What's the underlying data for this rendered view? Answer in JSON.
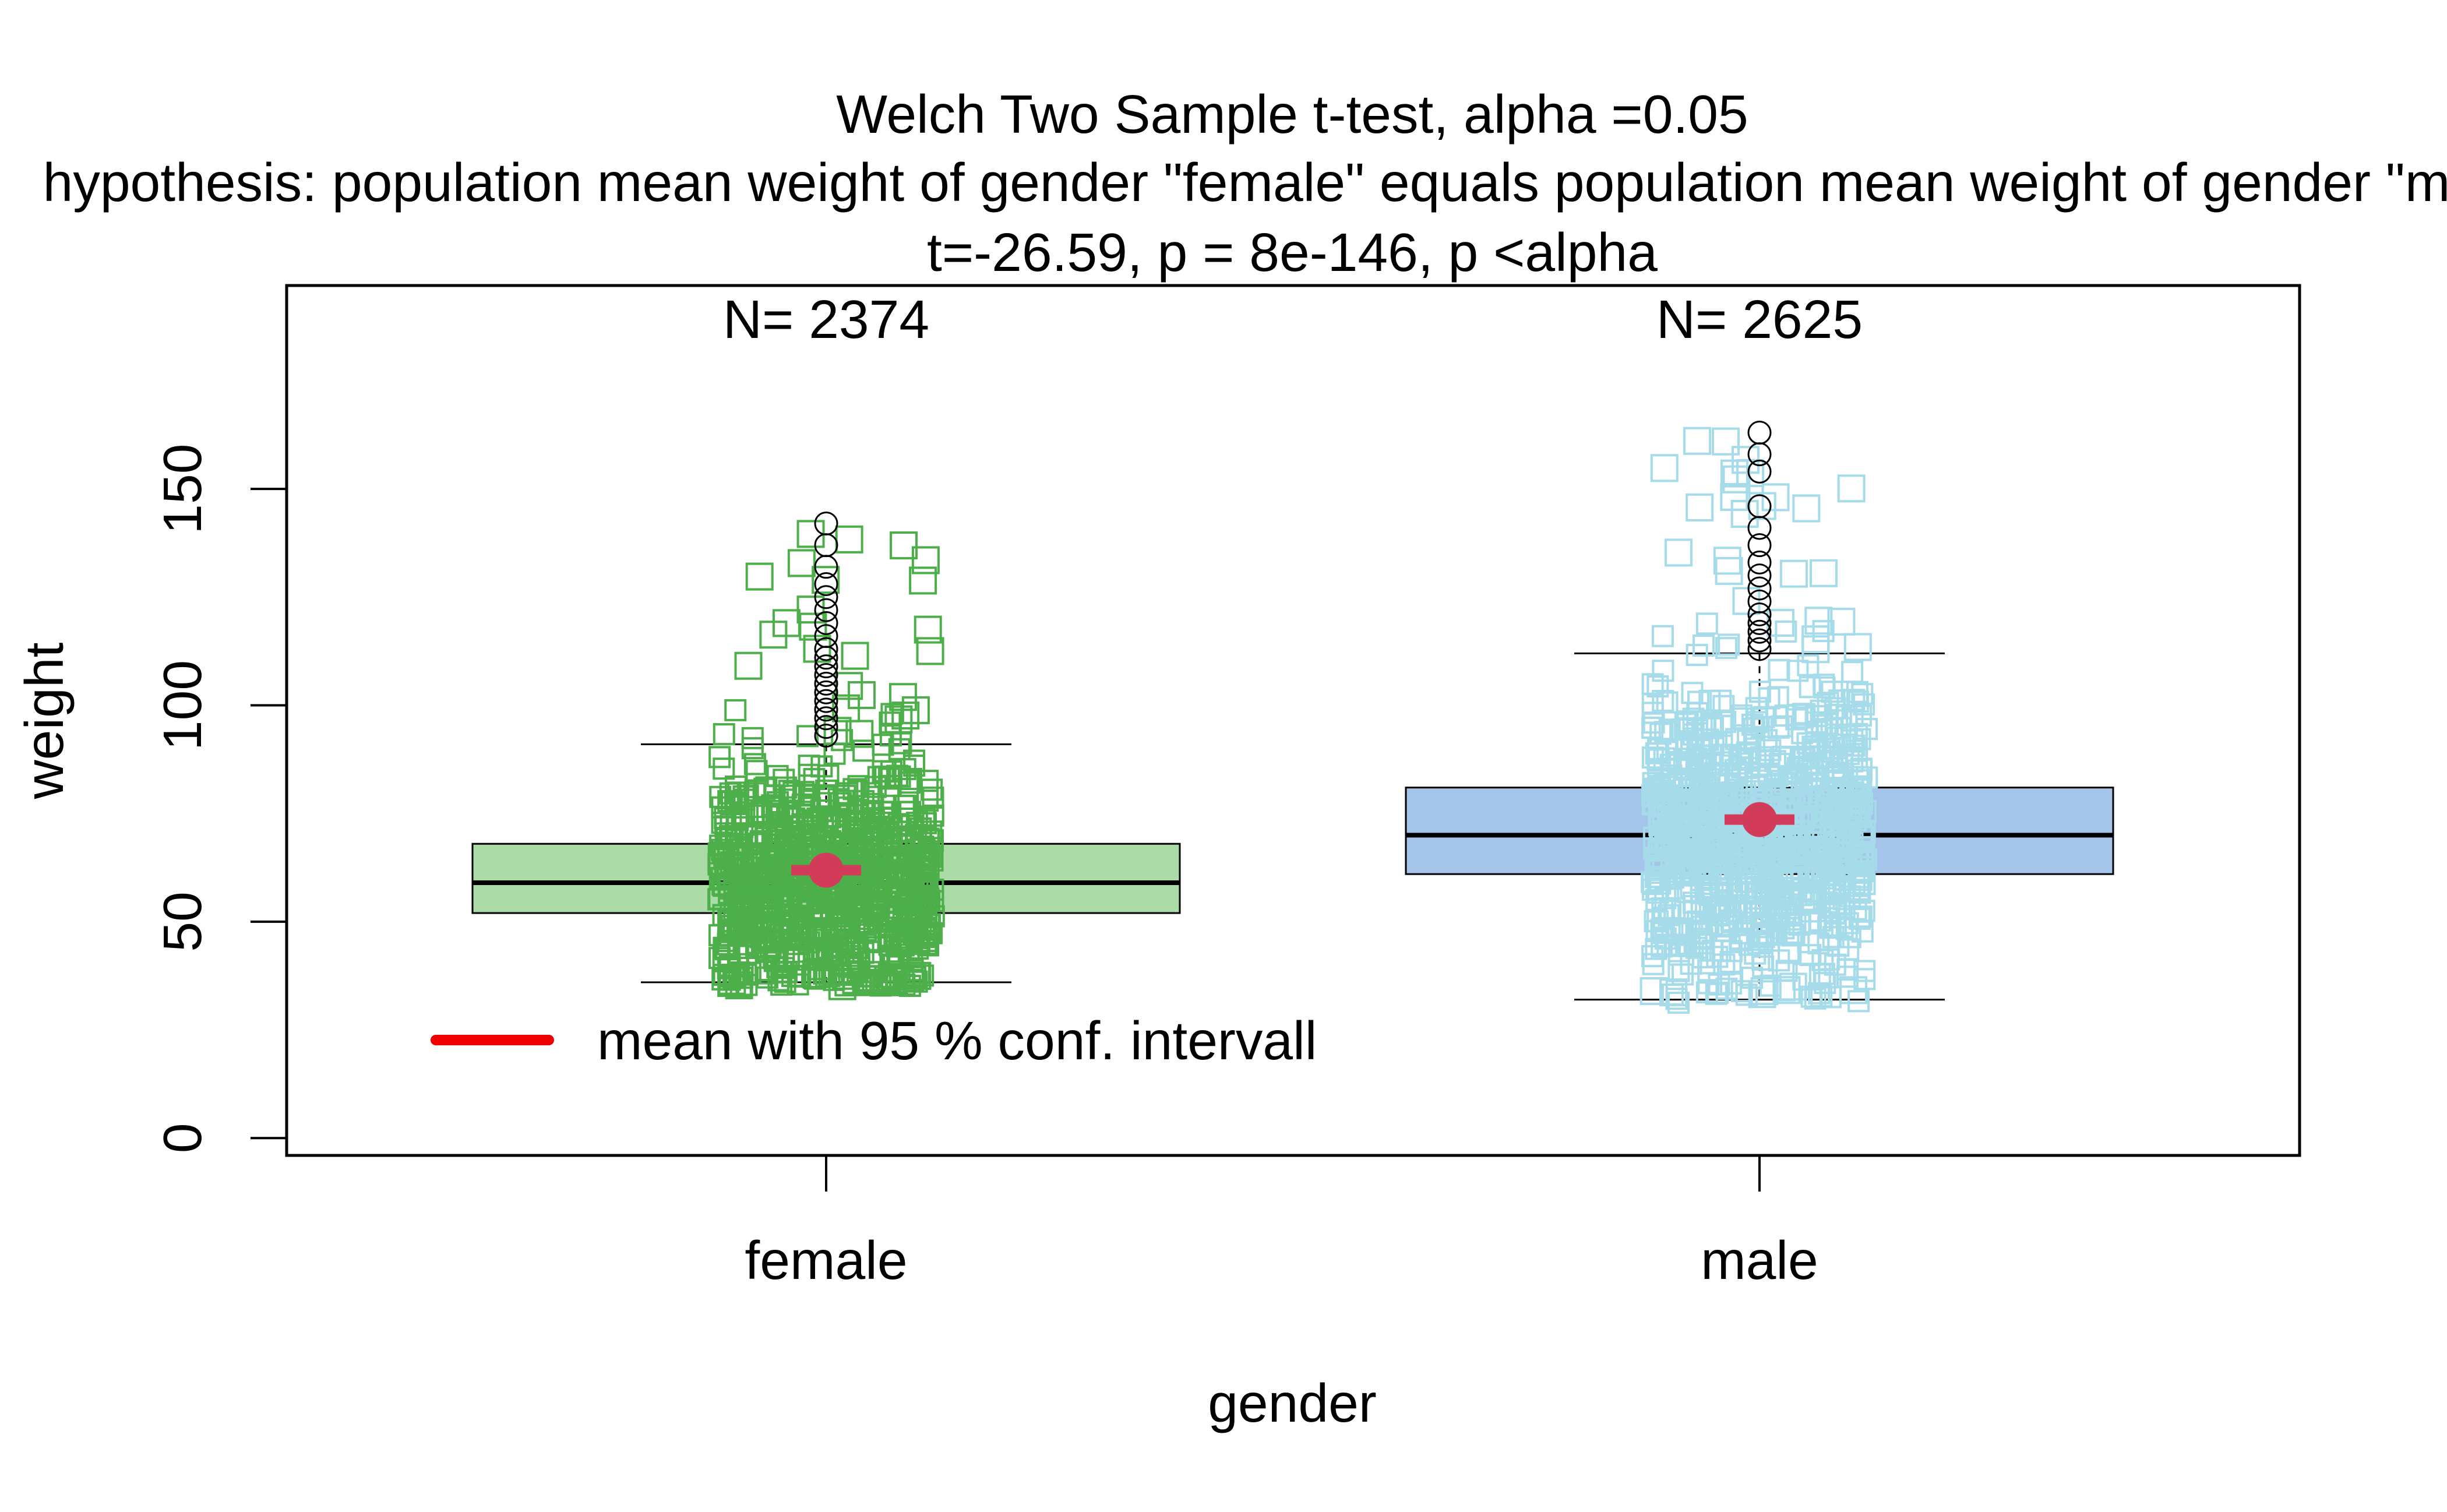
{
  "chart_data": {
    "type": "box",
    "title": "Welch Two Sample t-test, alpha =0.05",
    "subtitle": "hypothesis: population mean weight of gender \"female\" equals population mean weight of gender \"male\"",
    "stats_line": "t=-26.59, p = 8e-146, p <alpha",
    "xlabel": "gender",
    "ylabel": "weight",
    "ylim": [
      -4,
      197
    ],
    "yticks": [
      0,
      50,
      100,
      150
    ],
    "categories": [
      "female",
      "male"
    ],
    "legend": {
      "label": "mean with 95 % conf. intervall",
      "color": "#ee0000",
      "position": "bottom-left"
    },
    "groups": [
      {
        "name": "female",
        "n_label": "N= 2374",
        "n": 2374,
        "box_color": "#abdba6",
        "point_color": "#4daf4a",
        "whisker_low": 36,
        "q1": 52,
        "median": 59,
        "q3": 68,
        "whisker_high": 91,
        "mean": 61.9,
        "ci": [
          61.2,
          62.6
        ],
        "points_range": [
          35,
          142
        ],
        "outliers": [
          93,
          95,
          97,
          99,
          101,
          103,
          105,
          107,
          109,
          111,
          113,
          116,
          119,
          122,
          125,
          128,
          132,
          137,
          142
        ]
      },
      {
        "name": "male",
        "n_label": "N= 2625",
        "n": 2625,
        "box_color": "#a4c4ea",
        "point_color": "#a6dbea",
        "whisker_low": 32,
        "q1": 61,
        "median": 70,
        "q3": 81,
        "whisker_high": 112,
        "mean": 73.6,
        "ci": [
          72.9,
          74.3
        ],
        "points_range": [
          31,
          164
        ],
        "outliers": [
          113,
          115,
          117,
          119,
          121,
          124,
          127,
          130,
          133,
          137,
          141,
          146,
          154,
          158,
          163
        ]
      }
    ],
    "mean_color": "#d33b5a"
  }
}
